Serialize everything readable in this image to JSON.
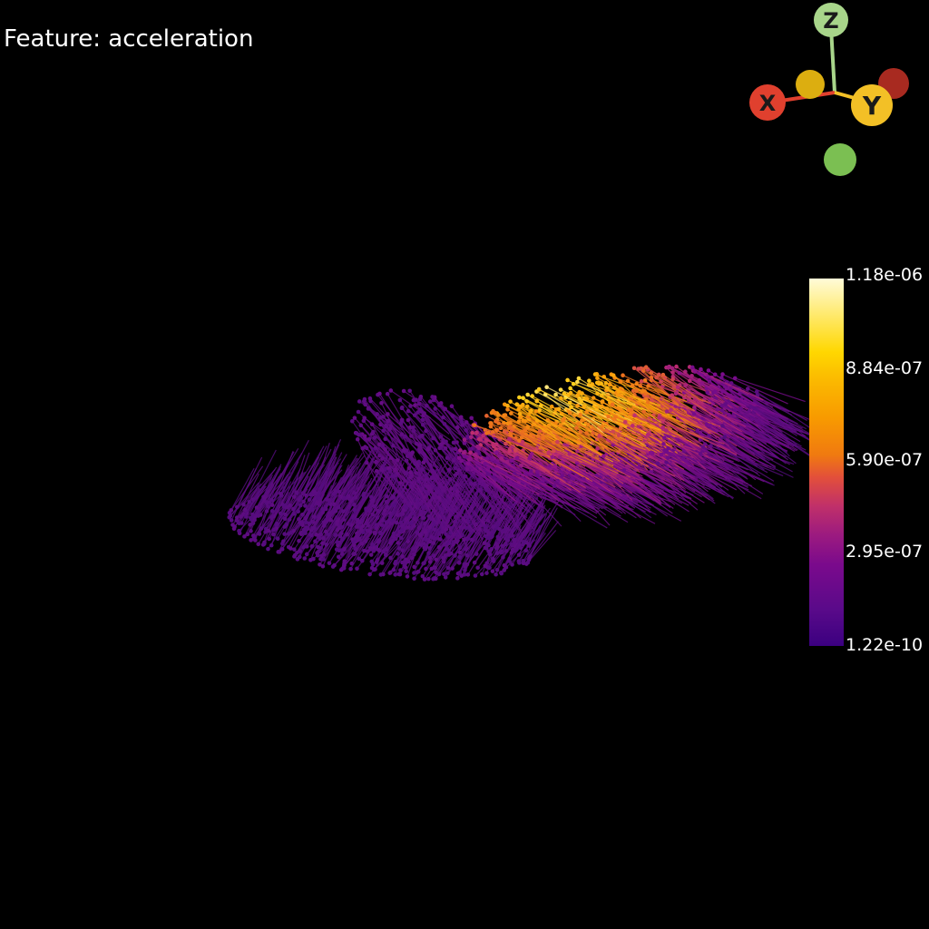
{
  "title": "Feature: acceleration",
  "axes": {
    "x_label": "X",
    "y_label": "Y",
    "z_label": "Z",
    "x_color": "#e0402e",
    "y_color": "#f3c026",
    "z_color": "#a8d58a",
    "neg_x_color": "#a82a20",
    "neg_y_color": "#dcae10",
    "neg_z_color": "#7bbf52"
  },
  "colorbar": {
    "colormap": "plasma-like",
    "ticks": [
      "1.18e-06",
      "8.84e-07",
      "5.90e-07",
      "2.95e-07",
      "1.22e-10"
    ]
  },
  "scene": {
    "description_colors": {
      "low": "#4b0c7a",
      "mid": "#e0782a",
      "high": "#fff3b0"
    }
  }
}
